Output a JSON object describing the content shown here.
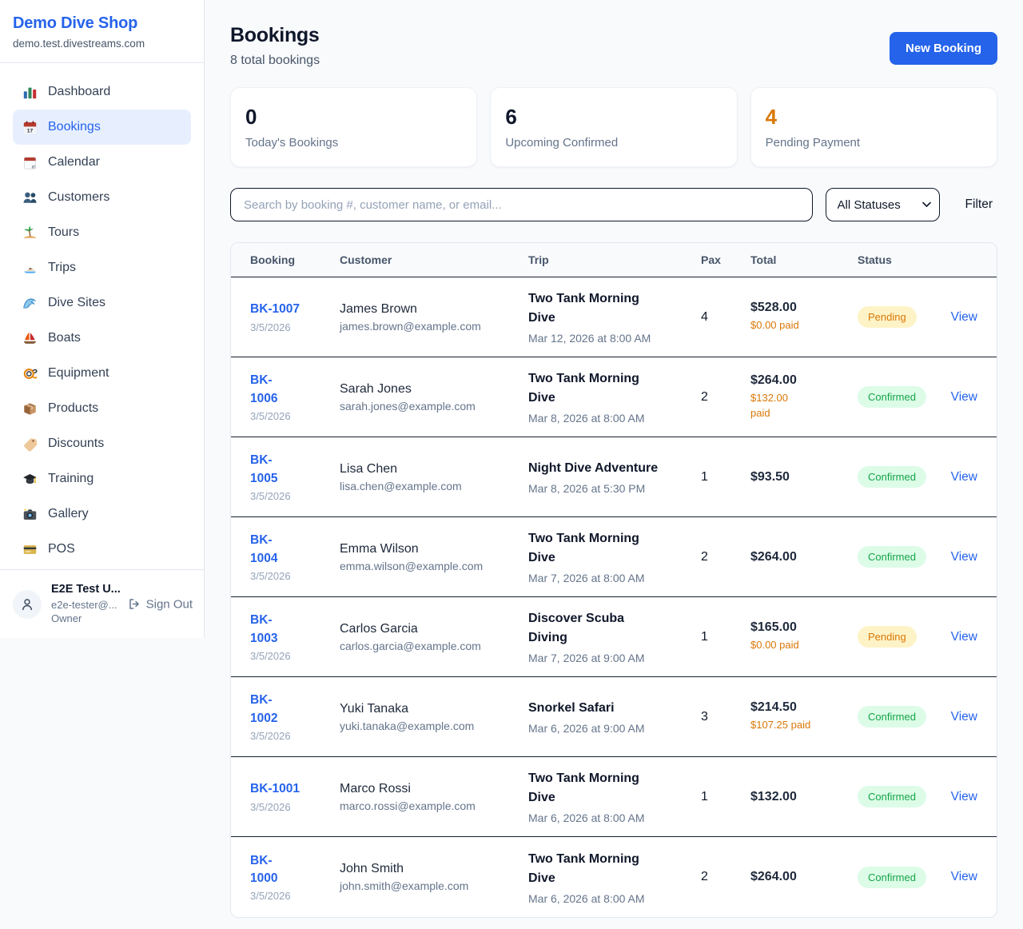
{
  "colors": {
    "accent": "#2563eb",
    "pending_text": "#d97706",
    "pending_bg": "#fef3c7",
    "confirmed_text": "#16a34a",
    "confirmed_bg": "#dcfce7",
    "stat_pending_value": "#d97706"
  },
  "sidebar": {
    "brand": "Demo Dive Shop",
    "domain": "demo.test.divestreams.com",
    "items": [
      {
        "label": "Dashboard",
        "icon": "bar-chart-icon",
        "active": false
      },
      {
        "label": "Bookings",
        "icon": "calendar-icon",
        "active": true
      },
      {
        "label": "Calendar",
        "icon": "tear-calendar-icon",
        "active": false
      },
      {
        "label": "Customers",
        "icon": "people-icon",
        "active": false
      },
      {
        "label": "Tours",
        "icon": "island-icon",
        "active": false
      },
      {
        "label": "Trips",
        "icon": "speedboat-icon",
        "active": false
      },
      {
        "label": "Dive Sites",
        "icon": "wave-icon",
        "active": false
      },
      {
        "label": "Boats",
        "icon": "sailboat-icon",
        "active": false
      },
      {
        "label": "Equipment",
        "icon": "dive-mask-icon",
        "active": false
      },
      {
        "label": "Products",
        "icon": "package-icon",
        "active": false
      },
      {
        "label": "Discounts",
        "icon": "tag-icon",
        "active": false
      },
      {
        "label": "Training",
        "icon": "grad-cap-icon",
        "active": false
      },
      {
        "label": "Gallery",
        "icon": "camera-icon",
        "active": false
      },
      {
        "label": "POS",
        "icon": "credit-card-icon",
        "active": false
      }
    ],
    "user": {
      "name": "E2E Test U...",
      "email": "e2e-tester@...",
      "role": "Owner",
      "signout_label": "Sign Out"
    }
  },
  "header": {
    "title": "Bookings",
    "subtitle": "8 total bookings",
    "new_booking_label": "New Booking"
  },
  "stats": [
    {
      "value": "0",
      "label": "Today's Bookings",
      "highlight": false
    },
    {
      "value": "6",
      "label": "Upcoming Confirmed",
      "highlight": false
    },
    {
      "value": "4",
      "label": "Pending Payment",
      "highlight": true
    }
  ],
  "controls": {
    "search_placeholder": "Search by booking #, customer name, or email...",
    "status_filter_value": "All Statuses",
    "filter_label": "Filter"
  },
  "table": {
    "columns": [
      "Booking",
      "Customer",
      "Trip",
      "Pax",
      "Total",
      "Status"
    ],
    "rows": [
      {
        "id_lines": [
          "BK-1007"
        ],
        "date": "3/5/2026",
        "customer": "James Brown",
        "email": "james.brown@example.com",
        "trip_lines": [
          "Two Tank Morning",
          "Dive"
        ],
        "trip_date": "Mar 12, 2026 at 8:00 AM",
        "pax": "4",
        "total": "$528.00",
        "paid_lines": [
          "$0.00 paid"
        ],
        "status": "Pending",
        "action": "View"
      },
      {
        "id_lines": [
          "BK-",
          "1006"
        ],
        "date": "3/5/2026",
        "customer": "Sarah Jones",
        "email": "sarah.jones@example.com",
        "trip_lines": [
          "Two Tank Morning",
          "Dive"
        ],
        "trip_date": "Mar 8, 2026 at 8:00 AM",
        "pax": "2",
        "total": "$264.00",
        "paid_lines": [
          "$132.00",
          "paid"
        ],
        "status": "Confirmed",
        "action": "View"
      },
      {
        "id_lines": [
          "BK-",
          "1005"
        ],
        "date": "3/5/2026",
        "customer": "Lisa Chen",
        "email": "lisa.chen@example.com",
        "trip_lines": [
          "Night Dive Adventure"
        ],
        "trip_date": "Mar 8, 2026 at 5:30 PM",
        "pax": "1",
        "total": "$93.50",
        "paid_lines": [],
        "status": "Confirmed",
        "action": "View"
      },
      {
        "id_lines": [
          "BK-",
          "1004"
        ],
        "date": "3/5/2026",
        "customer": "Emma Wilson",
        "email": "emma.wilson@example.com",
        "trip_lines": [
          "Two Tank Morning",
          "Dive"
        ],
        "trip_date": "Mar 7, 2026 at 8:00 AM",
        "pax": "2",
        "total": "$264.00",
        "paid_lines": [],
        "status": "Confirmed",
        "action": "View"
      },
      {
        "id_lines": [
          "BK-",
          "1003"
        ],
        "date": "3/5/2026",
        "customer": "Carlos Garcia",
        "email": "carlos.garcia@example.com",
        "trip_lines": [
          "Discover Scuba",
          "Diving"
        ],
        "trip_date": "Mar 7, 2026 at 9:00 AM",
        "pax": "1",
        "total": "$165.00",
        "paid_lines": [
          "$0.00 paid"
        ],
        "status": "Pending",
        "action": "View"
      },
      {
        "id_lines": [
          "BK-",
          "1002"
        ],
        "date": "3/5/2026",
        "customer": "Yuki Tanaka",
        "email": "yuki.tanaka@example.com",
        "trip_lines": [
          "Snorkel Safari"
        ],
        "trip_date": "Mar 6, 2026 at 9:00 AM",
        "pax": "3",
        "total": "$214.50",
        "paid_lines": [
          "$107.25 paid"
        ],
        "status": "Confirmed",
        "action": "View"
      },
      {
        "id_lines": [
          "BK-1001"
        ],
        "date": "3/5/2026",
        "customer": "Marco Rossi",
        "email": "marco.rossi@example.com",
        "trip_lines": [
          "Two Tank Morning",
          "Dive"
        ],
        "trip_date": "Mar 6, 2026 at 8:00 AM",
        "pax": "1",
        "total": "$132.00",
        "paid_lines": [],
        "status": "Confirmed",
        "action": "View"
      },
      {
        "id_lines": [
          "BK-",
          "1000"
        ],
        "date": "3/5/2026",
        "customer": "John Smith",
        "email": "john.smith@example.com",
        "trip_lines": [
          "Two Tank Morning",
          "Dive"
        ],
        "trip_date": "Mar 6, 2026 at 8:00 AM",
        "pax": "2",
        "total": "$264.00",
        "paid_lines": [],
        "status": "Confirmed",
        "action": "View"
      }
    ]
  }
}
